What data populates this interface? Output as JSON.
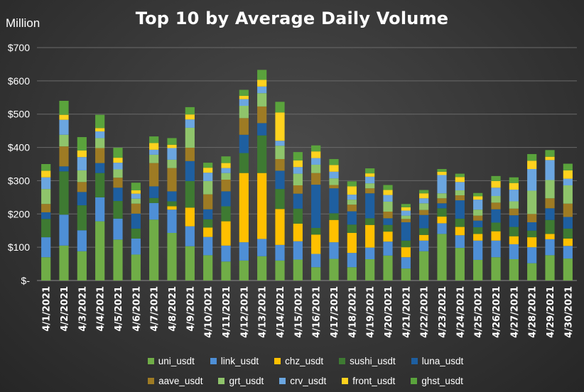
{
  "chart_data": {
    "type": "stacked-bar",
    "title": "Top 10 by Average Daily Volume",
    "ylabel": "Million",
    "xlabel": "",
    "ylim": [
      0,
      700
    ],
    "yticks": [
      0,
      100,
      200,
      300,
      400,
      500,
      600,
      700
    ],
    "ytick_labels": [
      "$-",
      "$100",
      "$200",
      "$300",
      "$400",
      "$500",
      "$600",
      "$700"
    ],
    "grid": true,
    "legend_position": "bottom",
    "categories": [
      "4/1/2021",
      "4/2/2021",
      "4/3/2021",
      "4/4/2021",
      "4/5/2021",
      "4/6/2021",
      "4/7/2021",
      "4/8/2021",
      "4/9/2021",
      "4/10/2021",
      "4/11/2021",
      "4/12/2021",
      "4/13/2021",
      "4/14/2021",
      "4/15/2021",
      "4/16/2021",
      "4/17/2021",
      "4/18/2021",
      "4/19/2021",
      "4/20/2021",
      "4/21/2021",
      "4/22/2021",
      "4/23/2021",
      "4/24/2021",
      "4/25/2021",
      "4/26/2021",
      "4/27/2021",
      "4/28/2021",
      "4/29/2021",
      "4/30/2021"
    ],
    "series": [
      {
        "name": "uni_usdt",
        "color": "#70ad47",
        "values": [
          70,
          105,
          88,
          178,
          123,
          78,
          183,
          143,
          103,
          76,
          57,
          60,
          73,
          60,
          63,
          40,
          65,
          40,
          64,
          75,
          36,
          88,
          140,
          98,
          62,
          70,
          64,
          52,
          76,
          66
        ]
      },
      {
        "name": "link_usdt",
        "color": "#4e8fd6",
        "values": [
          60,
          93,
          63,
          72,
          63,
          48,
          50,
          70,
          60,
          55,
          48,
          55,
          52,
          47,
          55,
          40,
          50,
          43,
          35,
          42,
          34,
          32,
          32,
          38,
          58,
          50,
          45,
          48,
          48,
          38
        ]
      },
      {
        "name": "chz_usdt",
        "color": "#ffc000",
        "values": [
          0,
          0,
          0,
          0,
          0,
          0,
          0,
          10,
          56,
          28,
          73,
          208,
          198,
          108,
          53,
          58,
          67,
          60,
          68,
          30,
          30,
          17,
          20,
          25,
          20,
          28,
          24,
          30,
          16,
          22
        ]
      },
      {
        "name": "sushi_usdt",
        "color": "#3e7a32",
        "values": [
          55,
          130,
          75,
          73,
          53,
          30,
          15,
          15,
          80,
          25,
          45,
          60,
          113,
          60,
          45,
          20,
          20,
          25,
          20,
          20,
          20,
          20,
          25,
          25,
          20,
          26,
          28,
          20,
          42,
          30
        ]
      },
      {
        "name": "luna_usdt",
        "color": "#1e5fa0",
        "values": [
          20,
          15,
          40,
          30,
          40,
          45,
          35,
          30,
          60,
          30,
          45,
          55,
          37,
          55,
          45,
          130,
          75,
          40,
          75,
          20,
          55,
          40,
          15,
          55,
          20,
          40,
          35,
          25,
          35,
          35
        ]
      },
      {
        "name": "aave_usdt",
        "color": "#9e7b24",
        "values": [
          25,
          60,
          30,
          45,
          30,
          30,
          70,
          70,
          40,
          45,
          35,
          50,
          50,
          35,
          25,
          35,
          10,
          20,
          15,
          20,
          10,
          15,
          15,
          15,
          15,
          20,
          20,
          25,
          30,
          40
        ]
      },
      {
        "name": "grt_usdt",
        "color": "#8fc46b",
        "values": [
          45,
          35,
          35,
          30,
          25,
          15,
          25,
          25,
          60,
          40,
          20,
          37,
          40,
          40,
          35,
          25,
          20,
          15,
          15,
          30,
          10,
          20,
          15,
          15,
          18,
          20,
          22,
          70,
          55,
          55
        ]
      },
      {
        "name": "crv_usdt",
        "color": "#6ba6e0",
        "values": [
          35,
          45,
          40,
          20,
          20,
          15,
          15,
          35,
          25,
          25,
          15,
          20,
          20,
          15,
          20,
          20,
          20,
          15,
          20,
          20,
          15,
          15,
          55,
          25,
          30,
          25,
          35,
          65,
          60,
          20
        ]
      },
      {
        "name": "front_usdt",
        "color": "#ffd21e",
        "values": [
          20,
          15,
          20,
          10,
          15,
          10,
          20,
          10,
          15,
          15,
          15,
          10,
          20,
          85,
          20,
          20,
          20,
          25,
          10,
          15,
          10,
          15,
          10,
          15,
          10,
          20,
          20,
          25,
          10,
          25
        ]
      },
      {
        "name": "ghst_usdt",
        "color": "#5aa33c",
        "values": [
          20,
          42,
          40,
          40,
          30,
          23,
          20,
          20,
          22,
          15,
          20,
          18,
          30,
          32,
          25,
          18,
          18,
          15,
          15,
          15,
          10,
          10,
          8,
          10,
          10,
          15,
          17,
          20,
          20,
          20
        ]
      }
    ]
  }
}
